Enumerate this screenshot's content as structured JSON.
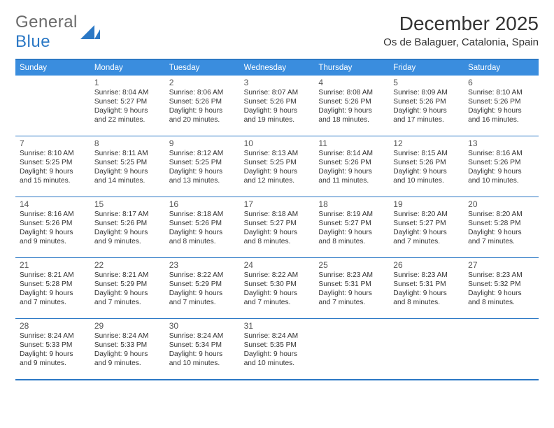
{
  "brand": {
    "word1": "General",
    "word2": "Blue"
  },
  "header": {
    "title": "December 2025",
    "location": "Os de Balaguer, Catalonia, Spain"
  },
  "colors": {
    "accent": "#3A8DDE",
    "rule": "#2b78c5",
    "text": "#333333",
    "muted": "#555555",
    "bg": "#ffffff"
  },
  "weekdays": [
    "Sunday",
    "Monday",
    "Tuesday",
    "Wednesday",
    "Thursday",
    "Friday",
    "Saturday"
  ],
  "weeks": [
    [
      null,
      {
        "n": "1",
        "sr": "Sunrise: 8:04 AM",
        "ss": "Sunset: 5:27 PM",
        "d1": "Daylight: 9 hours",
        "d2": "and 22 minutes."
      },
      {
        "n": "2",
        "sr": "Sunrise: 8:06 AM",
        "ss": "Sunset: 5:26 PM",
        "d1": "Daylight: 9 hours",
        "d2": "and 20 minutes."
      },
      {
        "n": "3",
        "sr": "Sunrise: 8:07 AM",
        "ss": "Sunset: 5:26 PM",
        "d1": "Daylight: 9 hours",
        "d2": "and 19 minutes."
      },
      {
        "n": "4",
        "sr": "Sunrise: 8:08 AM",
        "ss": "Sunset: 5:26 PM",
        "d1": "Daylight: 9 hours",
        "d2": "and 18 minutes."
      },
      {
        "n": "5",
        "sr": "Sunrise: 8:09 AM",
        "ss": "Sunset: 5:26 PM",
        "d1": "Daylight: 9 hours",
        "d2": "and 17 minutes."
      },
      {
        "n": "6",
        "sr": "Sunrise: 8:10 AM",
        "ss": "Sunset: 5:26 PM",
        "d1": "Daylight: 9 hours",
        "d2": "and 16 minutes."
      }
    ],
    [
      {
        "n": "7",
        "sr": "Sunrise: 8:10 AM",
        "ss": "Sunset: 5:25 PM",
        "d1": "Daylight: 9 hours",
        "d2": "and 15 minutes."
      },
      {
        "n": "8",
        "sr": "Sunrise: 8:11 AM",
        "ss": "Sunset: 5:25 PM",
        "d1": "Daylight: 9 hours",
        "d2": "and 14 minutes."
      },
      {
        "n": "9",
        "sr": "Sunrise: 8:12 AM",
        "ss": "Sunset: 5:25 PM",
        "d1": "Daylight: 9 hours",
        "d2": "and 13 minutes."
      },
      {
        "n": "10",
        "sr": "Sunrise: 8:13 AM",
        "ss": "Sunset: 5:25 PM",
        "d1": "Daylight: 9 hours",
        "d2": "and 12 minutes."
      },
      {
        "n": "11",
        "sr": "Sunrise: 8:14 AM",
        "ss": "Sunset: 5:26 PM",
        "d1": "Daylight: 9 hours",
        "d2": "and 11 minutes."
      },
      {
        "n": "12",
        "sr": "Sunrise: 8:15 AM",
        "ss": "Sunset: 5:26 PM",
        "d1": "Daylight: 9 hours",
        "d2": "and 10 minutes."
      },
      {
        "n": "13",
        "sr": "Sunrise: 8:16 AM",
        "ss": "Sunset: 5:26 PM",
        "d1": "Daylight: 9 hours",
        "d2": "and 10 minutes."
      }
    ],
    [
      {
        "n": "14",
        "sr": "Sunrise: 8:16 AM",
        "ss": "Sunset: 5:26 PM",
        "d1": "Daylight: 9 hours",
        "d2": "and 9 minutes."
      },
      {
        "n": "15",
        "sr": "Sunrise: 8:17 AM",
        "ss": "Sunset: 5:26 PM",
        "d1": "Daylight: 9 hours",
        "d2": "and 9 minutes."
      },
      {
        "n": "16",
        "sr": "Sunrise: 8:18 AM",
        "ss": "Sunset: 5:26 PM",
        "d1": "Daylight: 9 hours",
        "d2": "and 8 minutes."
      },
      {
        "n": "17",
        "sr": "Sunrise: 8:18 AM",
        "ss": "Sunset: 5:27 PM",
        "d1": "Daylight: 9 hours",
        "d2": "and 8 minutes."
      },
      {
        "n": "18",
        "sr": "Sunrise: 8:19 AM",
        "ss": "Sunset: 5:27 PM",
        "d1": "Daylight: 9 hours",
        "d2": "and 8 minutes."
      },
      {
        "n": "19",
        "sr": "Sunrise: 8:20 AM",
        "ss": "Sunset: 5:27 PM",
        "d1": "Daylight: 9 hours",
        "d2": "and 7 minutes."
      },
      {
        "n": "20",
        "sr": "Sunrise: 8:20 AM",
        "ss": "Sunset: 5:28 PM",
        "d1": "Daylight: 9 hours",
        "d2": "and 7 minutes."
      }
    ],
    [
      {
        "n": "21",
        "sr": "Sunrise: 8:21 AM",
        "ss": "Sunset: 5:28 PM",
        "d1": "Daylight: 9 hours",
        "d2": "and 7 minutes."
      },
      {
        "n": "22",
        "sr": "Sunrise: 8:21 AM",
        "ss": "Sunset: 5:29 PM",
        "d1": "Daylight: 9 hours",
        "d2": "and 7 minutes."
      },
      {
        "n": "23",
        "sr": "Sunrise: 8:22 AM",
        "ss": "Sunset: 5:29 PM",
        "d1": "Daylight: 9 hours",
        "d2": "and 7 minutes."
      },
      {
        "n": "24",
        "sr": "Sunrise: 8:22 AM",
        "ss": "Sunset: 5:30 PM",
        "d1": "Daylight: 9 hours",
        "d2": "and 7 minutes."
      },
      {
        "n": "25",
        "sr": "Sunrise: 8:23 AM",
        "ss": "Sunset: 5:31 PM",
        "d1": "Daylight: 9 hours",
        "d2": "and 7 minutes."
      },
      {
        "n": "26",
        "sr": "Sunrise: 8:23 AM",
        "ss": "Sunset: 5:31 PM",
        "d1": "Daylight: 9 hours",
        "d2": "and 8 minutes."
      },
      {
        "n": "27",
        "sr": "Sunrise: 8:23 AM",
        "ss": "Sunset: 5:32 PM",
        "d1": "Daylight: 9 hours",
        "d2": "and 8 minutes."
      }
    ],
    [
      {
        "n": "28",
        "sr": "Sunrise: 8:24 AM",
        "ss": "Sunset: 5:33 PM",
        "d1": "Daylight: 9 hours",
        "d2": "and 9 minutes."
      },
      {
        "n": "29",
        "sr": "Sunrise: 8:24 AM",
        "ss": "Sunset: 5:33 PM",
        "d1": "Daylight: 9 hours",
        "d2": "and 9 minutes."
      },
      {
        "n": "30",
        "sr": "Sunrise: 8:24 AM",
        "ss": "Sunset: 5:34 PM",
        "d1": "Daylight: 9 hours",
        "d2": "and 10 minutes."
      },
      {
        "n": "31",
        "sr": "Sunrise: 8:24 AM",
        "ss": "Sunset: 5:35 PM",
        "d1": "Daylight: 9 hours",
        "d2": "and 10 minutes."
      },
      null,
      null,
      null
    ]
  ]
}
